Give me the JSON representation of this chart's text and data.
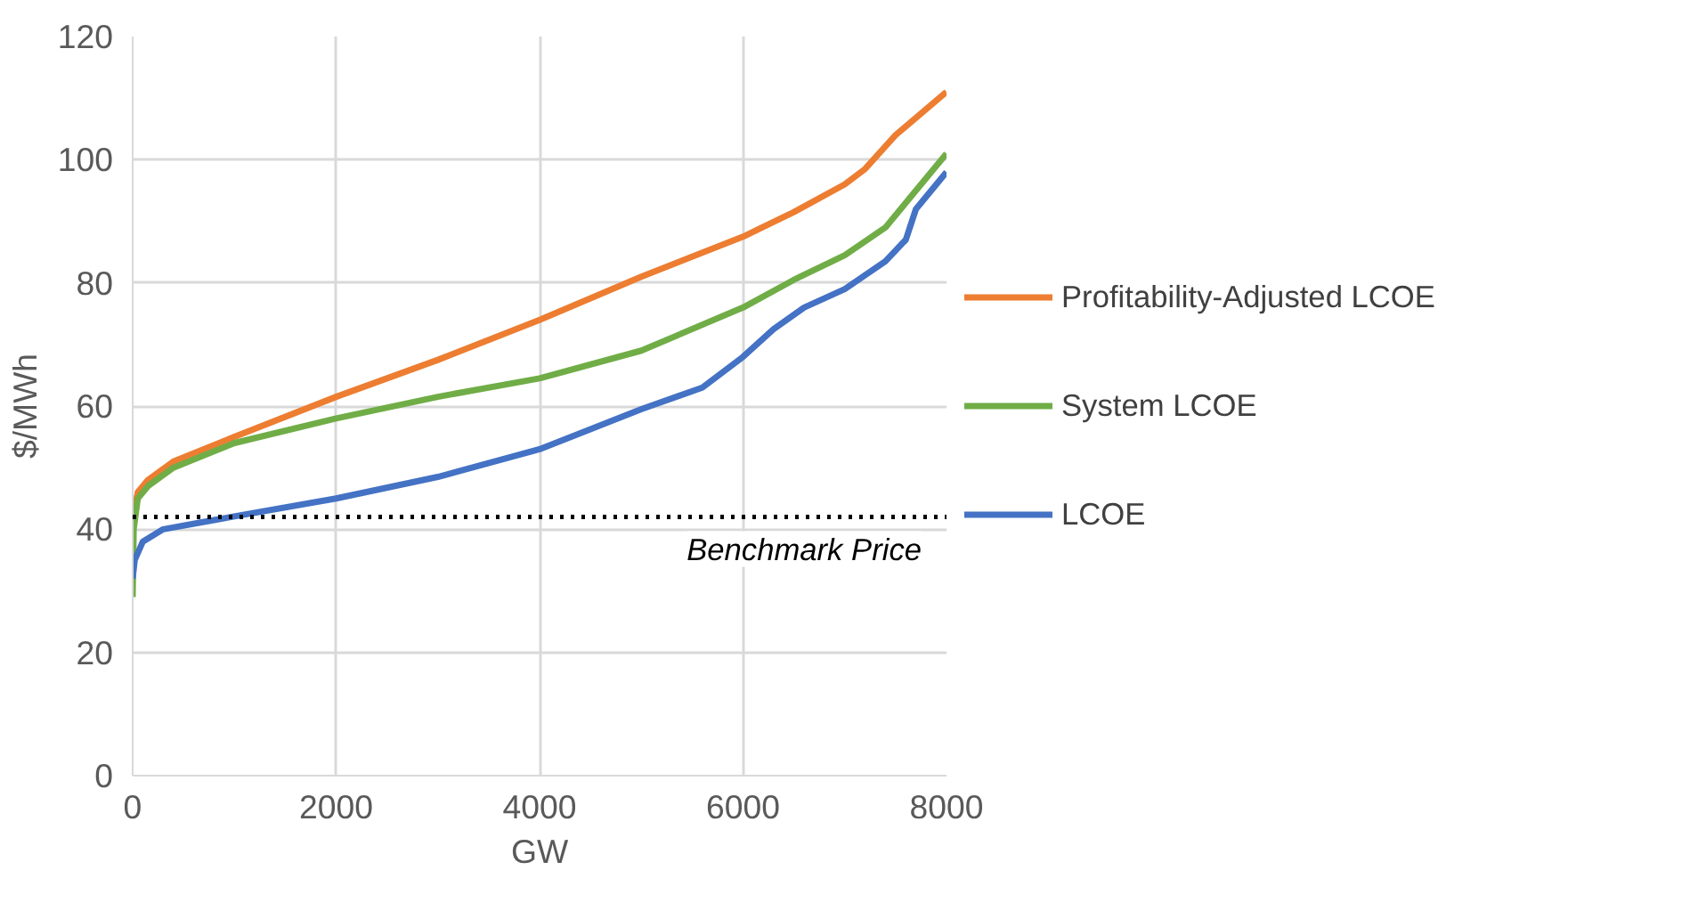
{
  "chart_data": {
    "type": "line",
    "xlabel": "GW",
    "ylabel": "$/MWh",
    "xlim": [
      0,
      8000
    ],
    "ylim": [
      0,
      120
    ],
    "xticks": [
      0,
      2000,
      4000,
      6000,
      8000
    ],
    "yticks": [
      0,
      20,
      40,
      60,
      80,
      100,
      120
    ],
    "grid": true,
    "legend": "right",
    "line_style": "solid",
    "marker": "none",
    "series": [
      {
        "name": "Profitability-Adjusted LCOE",
        "color": "#ed7d31",
        "x": [
          0,
          50,
          150,
          400,
          1000,
          2000,
          3000,
          4000,
          5000,
          6000,
          6500,
          7000,
          7200,
          7500,
          8000
        ],
        "values": [
          42,
          46,
          48,
          51,
          55,
          61.5,
          67.5,
          74,
          81,
          87.5,
          91.5,
          96,
          98.5,
          104,
          111
        ]
      },
      {
        "name": "System LCOE",
        "color": "#70ad47",
        "x": [
          0,
          10,
          50,
          150,
          400,
          1000,
          2000,
          3000,
          4000,
          5000,
          6000,
          6500,
          7000,
          7400,
          7600,
          8000
        ],
        "values": [
          29,
          40,
          45,
          47,
          50,
          54,
          58,
          61.5,
          64.5,
          69,
          76,
          80.5,
          84.5,
          89,
          93,
          101
        ]
      },
      {
        "name": "LCOE",
        "color": "#4472c4",
        "x": [
          0,
          20,
          100,
          300,
          800,
          2000,
          3000,
          4000,
          5000,
          5600,
          6000,
          6300,
          6600,
          7000,
          7400,
          7600,
          7700,
          8000
        ],
        "values": [
          32,
          35,
          38,
          40,
          41.5,
          45,
          48.5,
          53,
          59.5,
          63,
          68,
          72.5,
          76,
          79,
          83.5,
          87,
          92,
          98
        ]
      }
    ],
    "ref_lines": [
      {
        "axis": "y",
        "value": 42,
        "label": "Benchmark Price",
        "color": "#000000",
        "line_style": "dotted"
      }
    ]
  }
}
